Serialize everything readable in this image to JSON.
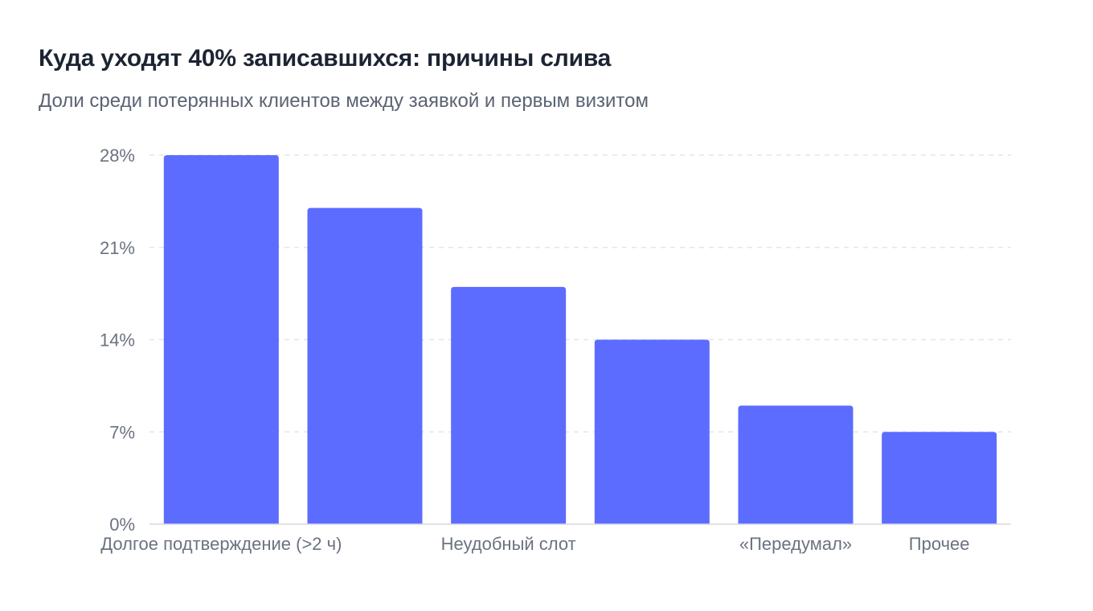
{
  "chart_data": {
    "type": "bar",
    "title": "Куда уходят 40% записавшихся: причины слива",
    "subtitle": "Доли среди потерянных клиентов между заявкой и первым визитом",
    "xlabel": "",
    "ylabel": "",
    "categories": [
      "Долгое подтверждение (>2 ч)",
      "",
      "Неудобный слот",
      "",
      "«Передумал»",
      "Прочее"
    ],
    "values": [
      28,
      24,
      18,
      14,
      9,
      7
    ],
    "ylim": [
      0,
      28
    ],
    "yticks": [
      0,
      7,
      14,
      21,
      28
    ],
    "ytick_labels": [
      "0%",
      "7%",
      "14%",
      "21%",
      "28%"
    ],
    "grid": true,
    "legend": "none",
    "colors": {
      "bar": "#5c6cff",
      "grid": "#e3e5ea",
      "axis": "#d5d8de",
      "text": "#6b7280"
    }
  }
}
